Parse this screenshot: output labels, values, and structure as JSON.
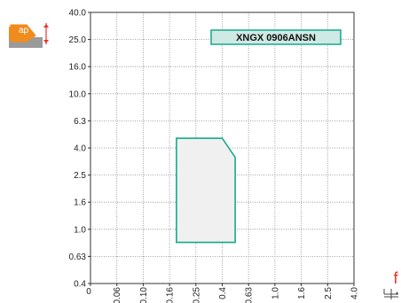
{
  "colors": {
    "accent_orange": "#f08c1e",
    "feed_red": "#e8332a",
    "region_stroke": "#15a98c",
    "region_fill": "#f0f0f0",
    "label_box_fill": "#cfe9e4",
    "grid": "#888888",
    "axis": "#333333"
  },
  "icons": {
    "depth_of_cut": "ap-depth-of-cut-icon",
    "feed": "f-feed-icon"
  },
  "symbols": {
    "depth_label": "ap",
    "feed_label": "f"
  },
  "chart_data": {
    "type": "area",
    "title": "XNGX 0906ANSN",
    "xlabel": "f",
    "ylabel": "ap",
    "x_ticks": [
      "0",
      "0.06",
      "0.10",
      "0.16",
      "0.25",
      "0.4",
      "0.63",
      "1.0",
      "1.6",
      "2.5",
      "4.0"
    ],
    "y_ticks": [
      "40.0",
      "25.0",
      "16.0",
      "10.0",
      "6.3",
      "4.0",
      "2.5",
      "1.6",
      "1.0",
      "0.63",
      "0.4"
    ],
    "grid": true,
    "region": {
      "name": "XNGX 0906ANSN",
      "points": [
        {
          "x": 0.18,
          "y": 0.8
        },
        {
          "x": 0.18,
          "y": 4.7
        },
        {
          "x": 0.4,
          "y": 4.7
        },
        {
          "x": 0.5,
          "y": 3.4
        },
        {
          "x": 0.5,
          "y": 0.8
        }
      ]
    }
  }
}
